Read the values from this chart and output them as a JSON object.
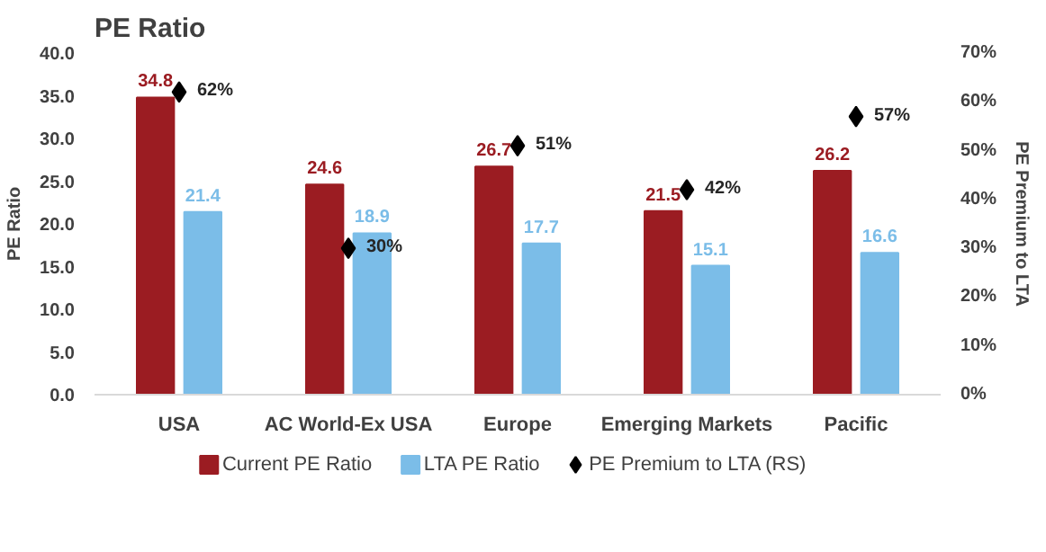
{
  "chart_data": {
    "type": "bar",
    "title": "PE Ratio",
    "ylabel": "PE Ratio",
    "y2label": "PE Premium to LTA",
    "categories": [
      "USA",
      "AC World-Ex USA",
      "Europe",
      "Emerging Markets",
      "Pacific"
    ],
    "series": [
      {
        "name": "Current PE Ratio",
        "color": "#9b1c22",
        "values": [
          34.8,
          24.6,
          26.7,
          21.5,
          26.2
        ],
        "value_labels": [
          "34.8",
          "24.6",
          "26.7",
          "21.5",
          "26.2"
        ]
      },
      {
        "name": "LTA PE Ratio",
        "color": "#7bbde8",
        "values": [
          21.4,
          18.9,
          17.7,
          15.1,
          16.6
        ],
        "value_labels": [
          "21.4",
          "18.9",
          "17.7",
          "15.1",
          "16.6"
        ]
      },
      {
        "name": "PE Premium to LTA (RS)",
        "type": "scatter",
        "axis": "y2",
        "marker": "diamond",
        "color": "#000000",
        "values": [
          62,
          30,
          51,
          42,
          57
        ],
        "value_labels": [
          "62%",
          "30%",
          "51%",
          "42%",
          "57%"
        ]
      }
    ],
    "ylim": [
      0,
      40
    ],
    "yticks": [
      {
        "value": 0,
        "label": "0.0"
      },
      {
        "value": 5,
        "label": "5.0"
      },
      {
        "value": 10,
        "label": "10.0"
      },
      {
        "value": 15,
        "label": "15.0"
      },
      {
        "value": 20,
        "label": "20.0"
      },
      {
        "value": 25,
        "label": "25.0"
      },
      {
        "value": 30,
        "label": "30.0"
      },
      {
        "value": 35,
        "label": "35.0"
      },
      {
        "value": 40,
        "label": "40.0"
      }
    ],
    "y2lim": [
      0,
      70
    ],
    "y2ticks": [
      {
        "value": 0,
        "label": "0%"
      },
      {
        "value": 10,
        "label": "10%"
      },
      {
        "value": 20,
        "label": "20%"
      },
      {
        "value": 30,
        "label": "30%"
      },
      {
        "value": 40,
        "label": "40%"
      },
      {
        "value": 50,
        "label": "50%"
      },
      {
        "value": 60,
        "label": "60%"
      },
      {
        "value": 70,
        "label": "70%"
      }
    ],
    "grid": false,
    "legend": "bottom"
  }
}
